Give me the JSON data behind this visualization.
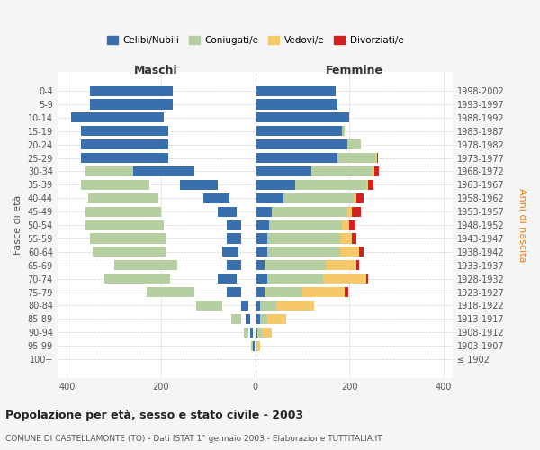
{
  "age_groups": [
    "100+",
    "95-99",
    "90-94",
    "85-89",
    "80-84",
    "75-79",
    "70-74",
    "65-69",
    "60-64",
    "55-59",
    "50-54",
    "45-49",
    "40-44",
    "35-39",
    "30-34",
    "25-29",
    "20-24",
    "15-19",
    "10-14",
    "5-9",
    "0-4"
  ],
  "birth_years": [
    "≤ 1902",
    "1903-1907",
    "1908-1912",
    "1913-1917",
    "1918-1922",
    "1923-1927",
    "1928-1932",
    "1933-1937",
    "1938-1942",
    "1943-1947",
    "1948-1952",
    "1953-1957",
    "1958-1962",
    "1963-1967",
    "1968-1972",
    "1973-1977",
    "1978-1982",
    "1983-1987",
    "1988-1992",
    "1993-1997",
    "1998-2002"
  ],
  "male": {
    "celibi": [
      0,
      2,
      5,
      10,
      15,
      30,
      40,
      30,
      35,
      30,
      30,
      40,
      55,
      80,
      130,
      185,
      185,
      185,
      195,
      175,
      175
    ],
    "coniugati": [
      0,
      3,
      10,
      20,
      55,
      100,
      140,
      135,
      155,
      160,
      165,
      160,
      150,
      145,
      115,
      70,
      25,
      5,
      0,
      0,
      0
    ],
    "vedovi": [
      0,
      0,
      3,
      10,
      20,
      10,
      10,
      5,
      5,
      3,
      3,
      0,
      0,
      0,
      0,
      0,
      0,
      0,
      0,
      0,
      0
    ],
    "divorziati": [
      0,
      0,
      0,
      0,
      0,
      8,
      5,
      8,
      15,
      10,
      12,
      20,
      12,
      12,
      8,
      0,
      0,
      0,
      0,
      0,
      0
    ]
  },
  "female": {
    "nubili": [
      0,
      2,
      5,
      10,
      10,
      20,
      25,
      20,
      25,
      25,
      30,
      35,
      60,
      85,
      120,
      175,
      195,
      185,
      200,
      175,
      170
    ],
    "coniugate": [
      0,
      3,
      10,
      15,
      35,
      80,
      120,
      130,
      155,
      155,
      155,
      160,
      150,
      150,
      130,
      80,
      30,
      5,
      0,
      0,
      0
    ],
    "vedove": [
      0,
      5,
      20,
      40,
      80,
      90,
      90,
      65,
      40,
      25,
      15,
      10,
      5,
      5,
      3,
      3,
      0,
      0,
      0,
      0,
      0
    ],
    "divorziate": [
      0,
      0,
      0,
      0,
      0,
      8,
      5,
      5,
      10,
      10,
      12,
      20,
      15,
      12,
      10,
      3,
      0,
      0,
      0,
      0,
      0
    ]
  },
  "colors": {
    "celibi": "#3a6fad",
    "coniugati": "#b5cfa0",
    "vedovi": "#f5c96a",
    "divorziati": "#d42020"
  },
  "legend_labels": {
    "celibi": "Celibi/Nubili",
    "coniugati": "Coniugati/e",
    "vedovi": "Vedovi/e",
    "divorziati": "Divorziati/e"
  },
  "xlim": 420,
  "title": "Popolazione per età, sesso e stato civile - 2003",
  "subtitle": "COMUNE DI CASTELLAMONTE (TO) - Dati ISTAT 1° gennaio 2003 - Elaborazione TUTTITALIA.IT",
  "ylabel_left": "Fasce di età",
  "ylabel_right": "Anni di nascita",
  "xlabel_left": "Maschi",
  "xlabel_right": "Femmine",
  "bg_color": "#f5f5f5",
  "plot_bg": "#ffffff"
}
